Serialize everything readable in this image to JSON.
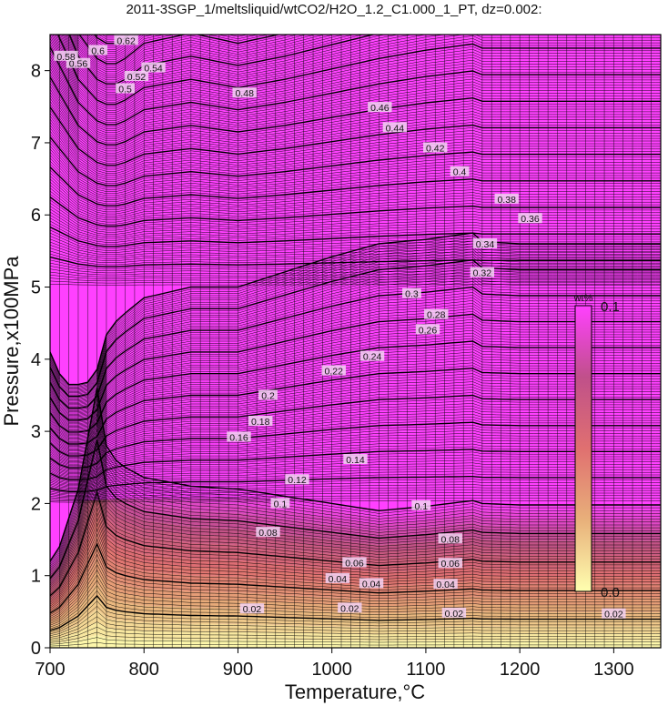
{
  "chart_data": {
    "type": "heatmap",
    "title": "2011-3SGP_1/meltsliquid/wtCO2/H2O_1.2_C1.000_1_PT, dz=0.002:",
    "xlabel": "Temperature,°C",
    "ylabel": "Pressure,x100MPa",
    "xlim": [
      700,
      1350
    ],
    "ylim": [
      0,
      8.5
    ],
    "x_ticks": [
      700,
      800,
      900,
      1000,
      1100,
      1200,
      1300
    ],
    "y_ticks": [
      0,
      1,
      2,
      3,
      4,
      5,
      6,
      7,
      8
    ],
    "grid": "vertical lines every 10 °C",
    "contour_interval": 0.002,
    "colorbar": {
      "label": "wt%",
      "min_label": "0.0",
      "max_label": "0.1",
      "min": 0.0,
      "max": 0.1,
      "colors": [
        "#ffffb0",
        "#e8b07a",
        "#e07070",
        "#c0508a",
        "#ff40ff"
      ]
    },
    "contour_labels": [
      {
        "value": "0.02",
        "T": 1300,
        "P": 0.47
      },
      {
        "value": "0.02",
        "T": 1130,
        "P": 0.48
      },
      {
        "value": "0.02",
        "T": 1019,
        "P": 0.55
      },
      {
        "value": "0.02",
        "T": 915,
        "P": 0.54
      },
      {
        "value": "0.04",
        "T": 1121,
        "P": 0.88
      },
      {
        "value": "0.04",
        "T": 1006,
        "P": 0.96
      },
      {
        "value": "0.04",
        "T": 1042,
        "P": 0.89
      },
      {
        "value": "0.06",
        "T": 1126,
        "P": 1.17
      },
      {
        "value": "0.06",
        "T": 1024,
        "P": 1.18
      },
      {
        "value": "0.08",
        "T": 1126,
        "P": 1.51
      },
      {
        "value": "0.08",
        "T": 932,
        "P": 1.6
      },
      {
        "value": "0.1",
        "T": 1095,
        "P": 1.97
      },
      {
        "value": "0.1",
        "T": 945,
        "P": 2.0
      },
      {
        "value": "0.12",
        "T": 963,
        "P": 2.33
      },
      {
        "value": "0.14",
        "T": 1025,
        "P": 2.61
      },
      {
        "value": "0.16",
        "T": 901,
        "P": 2.92
      },
      {
        "value": "0.18",
        "T": 924,
        "P": 3.14
      },
      {
        "value": "0.2",
        "T": 932,
        "P": 3.5
      },
      {
        "value": "0.22",
        "T": 1002,
        "P": 3.84
      },
      {
        "value": "0.24",
        "T": 1043,
        "P": 4.04
      },
      {
        "value": "0.26",
        "T": 1102,
        "P": 4.41
      },
      {
        "value": "0.28",
        "T": 1111,
        "P": 4.62
      },
      {
        "value": "0.3",
        "T": 1085,
        "P": 4.91
      },
      {
        "value": "0.32",
        "T": 1160,
        "P": 5.2
      },
      {
        "value": "0.34",
        "T": 1163,
        "P": 5.6
      },
      {
        "value": "0.36",
        "T": 1211,
        "P": 5.95
      },
      {
        "value": "0.38",
        "T": 1186,
        "P": 6.22
      },
      {
        "value": "0.4",
        "T": 1136,
        "P": 6.6
      },
      {
        "value": "0.42",
        "T": 1110,
        "P": 6.93
      },
      {
        "value": "0.44",
        "T": 1067,
        "P": 7.21
      },
      {
        "value": "0.46",
        "T": 1051,
        "P": 7.49
      },
      {
        "value": "0.48",
        "T": 907,
        "P": 7.69
      },
      {
        "value": "0.5",
        "T": 780,
        "P": 7.75
      },
      {
        "value": "0.52",
        "T": 792,
        "P": 7.92
      },
      {
        "value": "0.54",
        "T": 810,
        "P": 8.04
      },
      {
        "value": "0.56",
        "T": 730,
        "P": 8.1
      },
      {
        "value": "0.58",
        "T": 717,
        "P": 8.2
      },
      {
        "value": "0.6",
        "T": 751,
        "P": 8.28
      },
      {
        "value": "0.62",
        "T": 781,
        "P": 8.42
      }
    ]
  }
}
